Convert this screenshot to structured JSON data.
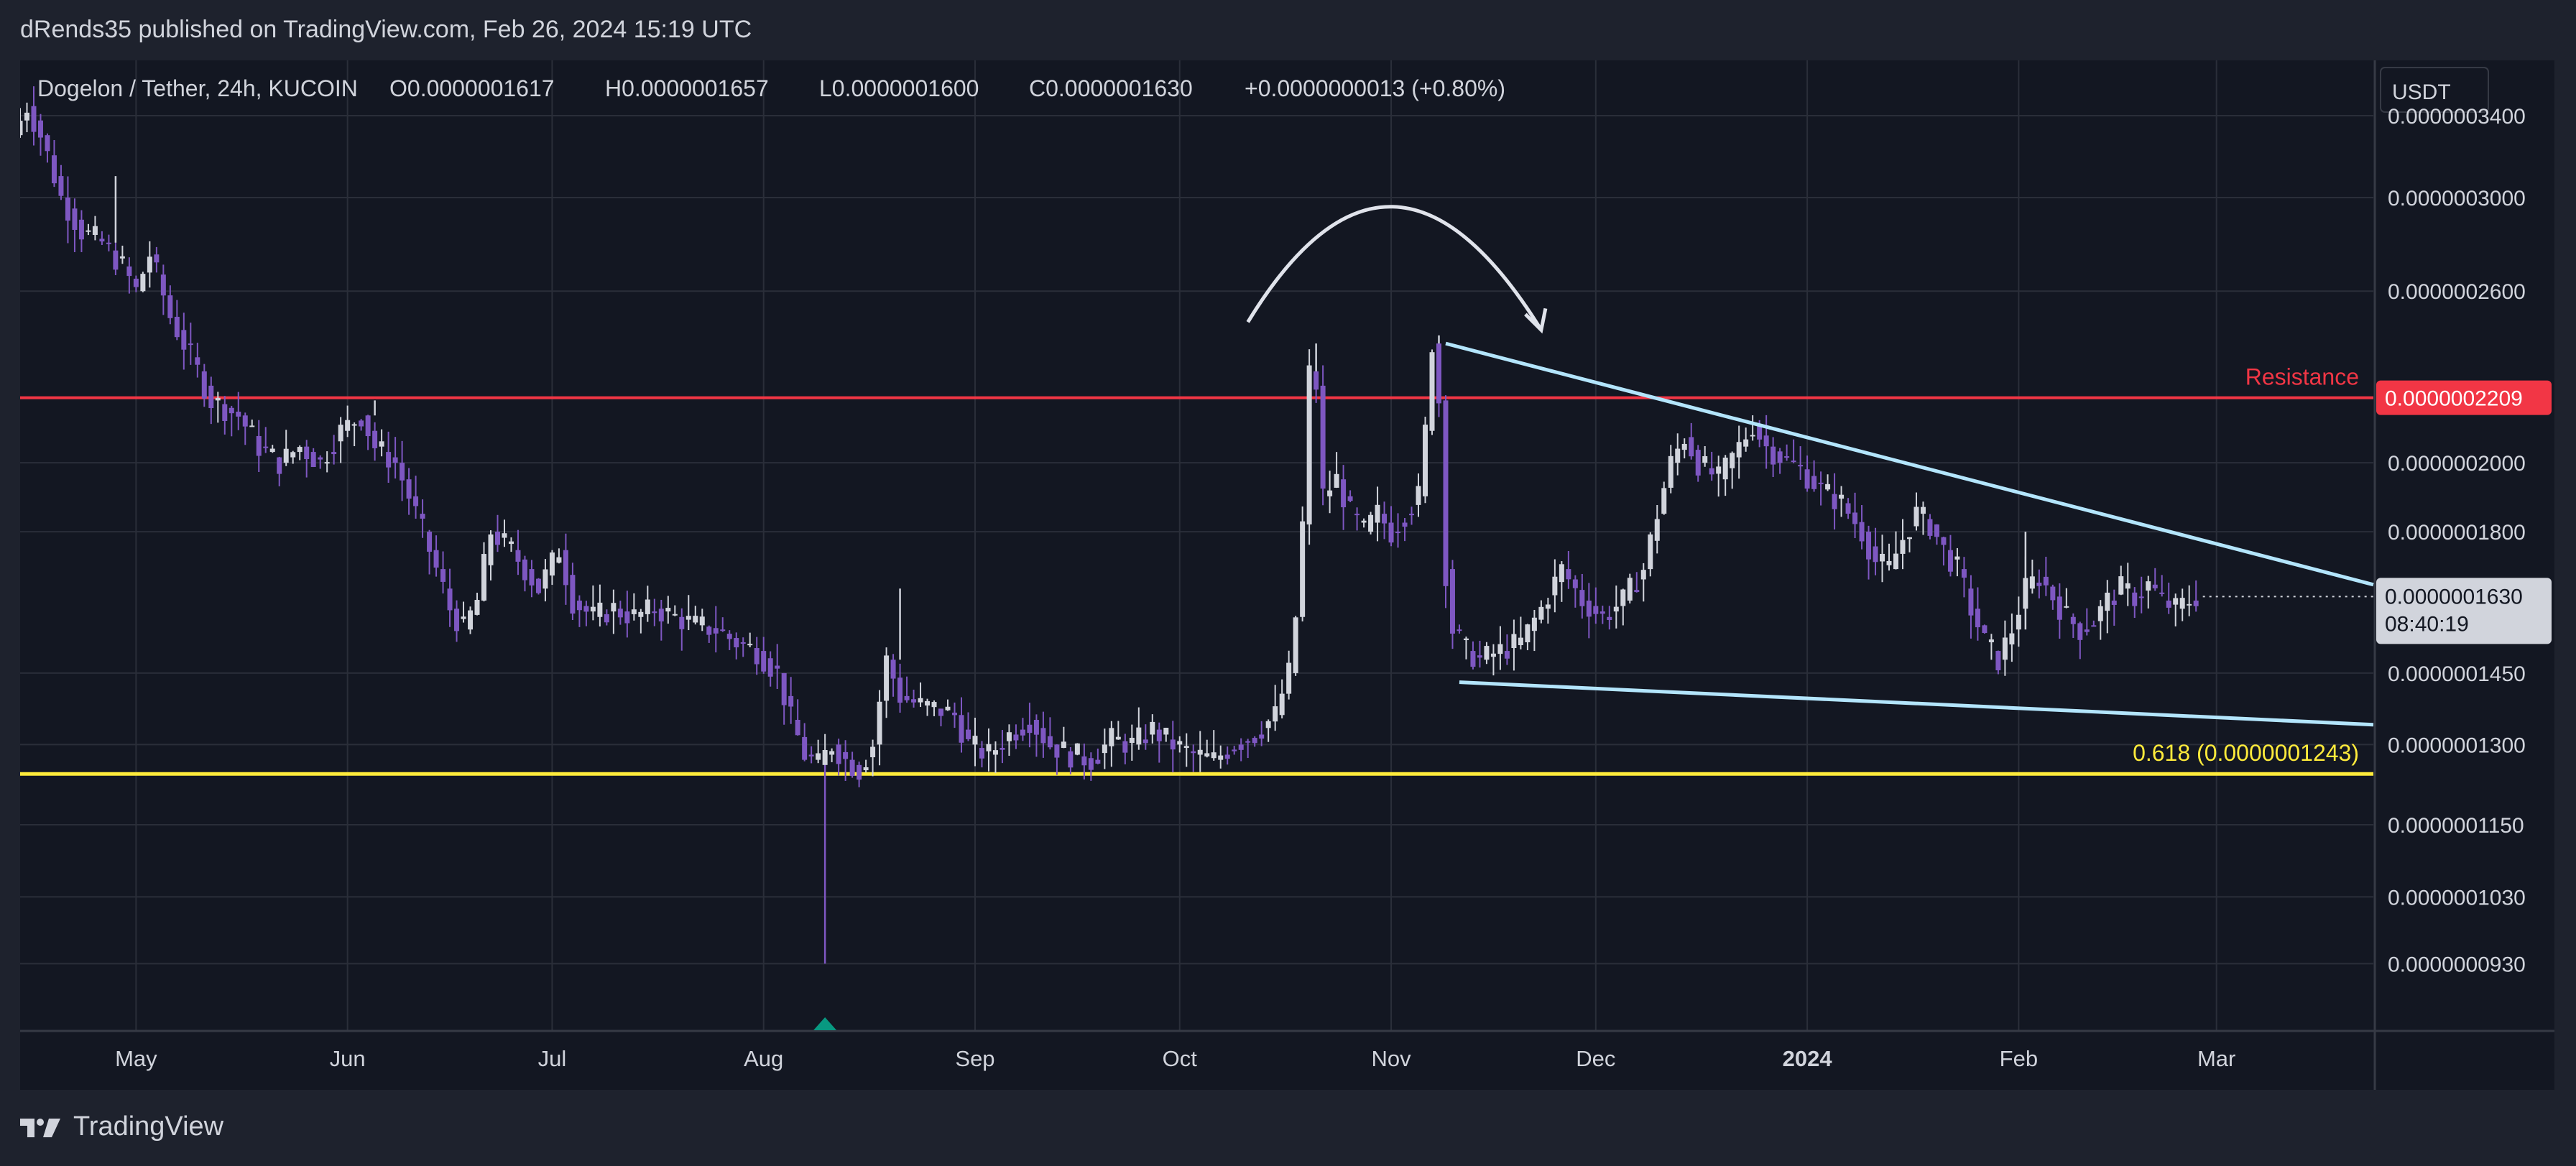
{
  "header": {
    "publisher": "dRends35 published on TradingView.com, Feb 26, 2024 15:19 UTC"
  },
  "legend": {
    "symbol": "Dogelon / Tether, 24h, KUCOIN",
    "open": "O0.0000001617",
    "high": "H0.0000001657",
    "low": "L0.0000001600",
    "close": "C0.0000001630",
    "change": "+0.0000000013 (+0.80%)"
  },
  "footer": {
    "brand": "TradingView"
  },
  "colors": {
    "background": "#131722",
    "grid": "#2a2e39",
    "candle": "#d1d4dc",
    "candle_down": "#7e57c2",
    "resistance": "#f23645",
    "fib": "#ffeb3b",
    "trendline": "#b3e5fc",
    "marker": "#089981"
  },
  "chart_data": {
    "type": "candlestick",
    "title": "Dogelon / Tether, 24h, KUCOIN",
    "currency": "USDT",
    "y_scale": "log",
    "y_ticks": [
      "0.0000003400",
      "0.0000003000",
      "0.0000002600",
      "0.0000002000",
      "0.0000001800",
      "0.0000001450",
      "0.0000001300",
      "0.0000001150",
      "0.0000001030",
      "0.0000000930"
    ],
    "y_tick_values": [
      3.4e-07,
      3e-07,
      2.6e-07,
      2e-07,
      1.8e-07,
      1.45e-07,
      1.3e-07,
      1.15e-07,
      1.03e-07,
      9.3e-08
    ],
    "x_ticks": [
      "May",
      "Jun",
      "Jul",
      "Aug",
      "Sep",
      "Oct",
      "Nov",
      "Dec",
      "2024",
      "Feb",
      "Mar"
    ],
    "x_tick_days": [
      0,
      31,
      61,
      92,
      123,
      153,
      184,
      214,
      245,
      276,
      305
    ],
    "x_range_days": [
      -17,
      328
    ],
    "ylim": [
      8.4e-08,
      3.7e-07
    ],
    "price_path": [
      [
        -17,
        3.3e-07
      ],
      [
        -15,
        3.45e-07
      ],
      [
        -13,
        3.3e-07
      ],
      [
        -10,
        3e-07
      ],
      [
        -7,
        2.85e-07
      ],
      [
        -4,
        2.8e-07
      ],
      [
        -1,
        2.7e-07
      ],
      [
        1,
        2.6e-07
      ],
      [
        3,
        2.75e-07
      ],
      [
        6,
        2.5e-07
      ],
      [
        9,
        2.35e-07
      ],
      [
        12,
        2.2e-07
      ],
      [
        16,
        2.15e-07
      ],
      [
        19,
        2.05e-07
      ],
      [
        22,
        2e-07
      ],
      [
        25,
        2.05e-07
      ],
      [
        28,
        2e-07
      ],
      [
        31,
        2.1e-07
      ],
      [
        34,
        2.15e-07
      ],
      [
        36,
        2.05e-07
      ],
      [
        39,
        2e-07
      ],
      [
        42,
        1.85e-07
      ],
      [
        45,
        1.7e-07
      ],
      [
        47,
        1.6e-07
      ],
      [
        49,
        1.55e-07
      ],
      [
        51,
        1.62e-07
      ],
      [
        53,
        1.8e-07
      ],
      [
        56,
        1.75e-07
      ],
      [
        58,
        1.7e-07
      ],
      [
        60,
        1.65e-07
      ],
      [
        63,
        1.75e-07
      ],
      [
        65,
        1.62e-07
      ],
      [
        68,
        1.58e-07
      ],
      [
        71,
        1.6e-07
      ],
      [
        74,
        1.58e-07
      ],
      [
        77,
        1.6e-07
      ],
      [
        80,
        1.58e-07
      ],
      [
        83,
        1.56e-07
      ],
      [
        86,
        1.55e-07
      ],
      [
        89,
        1.52e-07
      ],
      [
        92,
        1.5e-07
      ],
      [
        95,
        1.45e-07
      ],
      [
        97,
        1.35e-07
      ],
      [
        99,
        1.28e-07
      ],
      [
        101,
        1.26e-07
      ],
      [
        103,
        1.3e-07
      ],
      [
        105,
        1.27e-07
      ],
      [
        107,
        1.25e-07
      ],
      [
        109,
        1.3e-07
      ],
      [
        111,
        1.48e-07
      ],
      [
        113,
        1.4e-07
      ],
      [
        116,
        1.38e-07
      ],
      [
        119,
        1.37e-07
      ],
      [
        121,
        1.36e-07
      ],
      [
        123,
        1.3e-07
      ],
      [
        126,
        1.28e-07
      ],
      [
        129,
        1.32e-07
      ],
      [
        132,
        1.35e-07
      ],
      [
        135,
        1.3e-07
      ],
      [
        138,
        1.28e-07
      ],
      [
        141,
        1.27e-07
      ],
      [
        144,
        1.31e-07
      ],
      [
        147,
        1.3e-07
      ],
      [
        150,
        1.33e-07
      ],
      [
        153,
        1.3e-07
      ],
      [
        156,
        1.28e-07
      ],
      [
        159,
        1.27e-07
      ],
      [
        162,
        1.3e-07
      ],
      [
        165,
        1.32e-07
      ],
      [
        168,
        1.36e-07
      ],
      [
        170,
        1.45e-07
      ],
      [
        171,
        1.58e-07
      ],
      [
        172,
        1.82e-07
      ],
      [
        173,
        2.3e-07
      ],
      [
        174,
        2.25e-07
      ],
      [
        175,
        1.9e-07
      ],
      [
        177,
        1.95e-07
      ],
      [
        179,
        1.85e-07
      ],
      [
        181,
        1.8e-07
      ],
      [
        183,
        1.85e-07
      ],
      [
        185,
        1.8e-07
      ],
      [
        187,
        1.85e-07
      ],
      [
        189,
        1.9e-07
      ],
      [
        190,
        2.1e-07
      ],
      [
        191,
        2.4e-07
      ],
      [
        192,
        2.2e-07
      ],
      [
        193,
        1.7e-07
      ],
      [
        194,
        1.55e-07
      ],
      [
        196,
        1.5e-07
      ],
      [
        198,
        1.48e-07
      ],
      [
        201,
        1.5e-07
      ],
      [
        204,
        1.52e-07
      ],
      [
        207,
        1.6e-07
      ],
      [
        210,
        1.7e-07
      ],
      [
        213,
        1.62e-07
      ],
      [
        216,
        1.58e-07
      ],
      [
        219,
        1.62e-07
      ],
      [
        222,
        1.7e-07
      ],
      [
        224,
        1.85e-07
      ],
      [
        226,
        2e-07
      ],
      [
        228,
        2.08e-07
      ],
      [
        230,
        2e-07
      ],
      [
        233,
        1.95e-07
      ],
      [
        236,
        2.05e-07
      ],
      [
        238,
        2.12e-07
      ],
      [
        240,
        2.05e-07
      ],
      [
        242,
        2.02e-07
      ],
      [
        245,
        1.98e-07
      ],
      [
        248,
        1.92e-07
      ],
      [
        251,
        1.88e-07
      ],
      [
        254,
        1.8e-07
      ],
      [
        256,
        1.72e-07
      ],
      [
        258,
        1.7e-07
      ],
      [
        260,
        1.78e-07
      ],
      [
        262,
        1.85e-07
      ],
      [
        264,
        1.82e-07
      ],
      [
        266,
        1.75e-07
      ],
      [
        268,
        1.7e-07
      ],
      [
        270,
        1.6e-07
      ],
      [
        272,
        1.52e-07
      ],
      [
        274,
        1.48e-07
      ],
      [
        276,
        1.55e-07
      ],
      [
        278,
        1.65e-07
      ],
      [
        280,
        1.68e-07
      ],
      [
        282,
        1.63e-07
      ],
      [
        284,
        1.58e-07
      ],
      [
        286,
        1.55e-07
      ],
      [
        288,
        1.57e-07
      ],
      [
        290,
        1.62e-07
      ],
      [
        292,
        1.65e-07
      ],
      [
        294,
        1.63e-07
      ],
      [
        296,
        1.66e-07
      ],
      [
        298,
        1.62e-07
      ],
      [
        300,
        1.6e-07
      ],
      [
        302,
        1.62e-07
      ],
      [
        303,
        1.63e-07
      ]
    ],
    "spikes": [
      {
        "day": 101,
        "low": 9.3e-08,
        "marker": true
      },
      {
        "day": 112,
        "high": 1.65e-07
      },
      {
        "day": 35,
        "high": 2.2e-07
      },
      {
        "day": 173,
        "high": 2.4e-07
      },
      {
        "day": 191,
        "high": 2.43e-07
      },
      {
        "day": 277,
        "high": 1.8e-07
      },
      {
        "day": -3,
        "high": 3.1e-07
      }
    ],
    "annotations": {
      "resistance": {
        "label": "Resistance",
        "value": "0.0000002209",
        "price": 2.209e-07
      },
      "fib": {
        "label": "0.618 (0.0000001243)",
        "price": 1.243e-07
      },
      "current_price": {
        "value": "0.0000001630",
        "countdown": "08:40:19",
        "price": 1.63e-07
      },
      "upper_trendline": {
        "from": [
          192,
          2.4e-07
        ],
        "to": [
          328,
          1.66e-07
        ]
      },
      "lower_trendline": {
        "from": [
          194,
          1.43e-07
        ],
        "to": [
          328,
          1.34e-07
        ]
      }
    }
  }
}
